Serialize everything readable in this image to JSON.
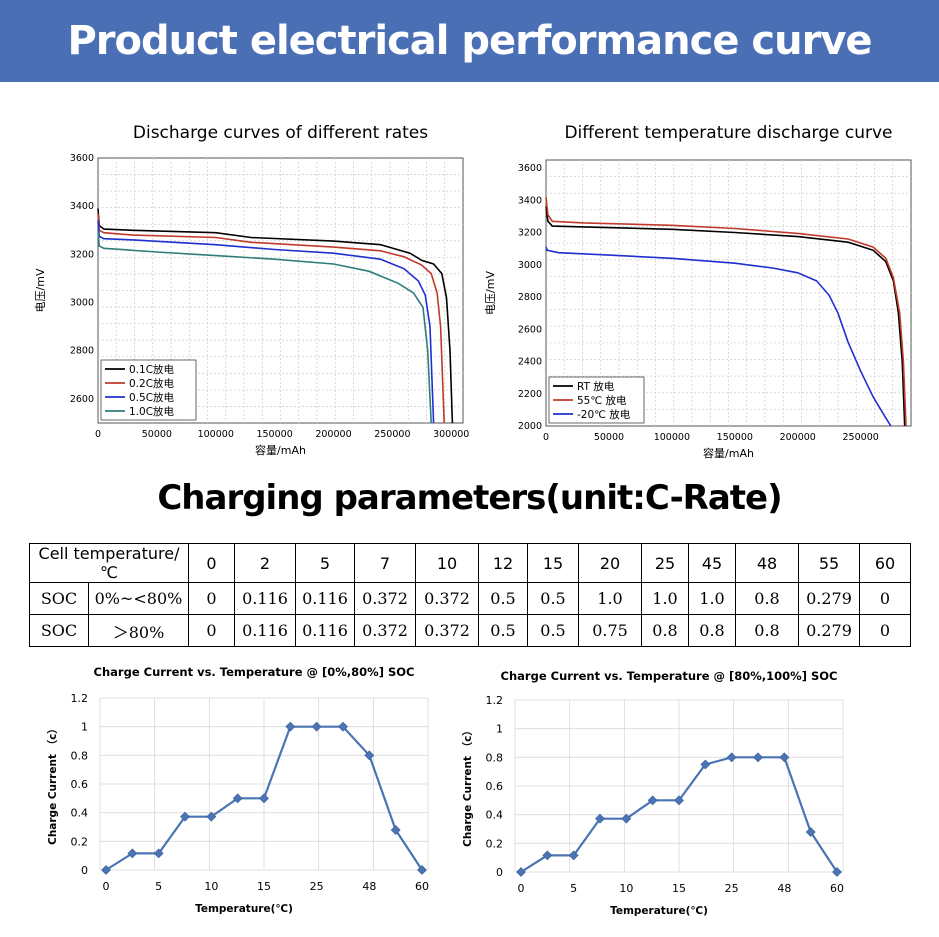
{
  "banner": {
    "title": "Product electrical performance curve"
  },
  "section": {
    "title": "Charging parameters(unit:C-Rate)"
  },
  "colors": {
    "banner": "#4a6fb5",
    "line_blue": "#4a74b4",
    "black": "#000000",
    "red": "#c0392b",
    "blue": "#1f2fd0",
    "teal": "#2e7d7b"
  },
  "table": {
    "header_label": "Cell temperature/℃",
    "temperatures": [
      "0",
      "2",
      "5",
      "7",
      "10",
      "12",
      "15",
      "20",
      "25",
      "45",
      "48",
      "55",
      "60"
    ],
    "rows": [
      {
        "label": "SOC",
        "range": "0%~<80%",
        "values": [
          "0",
          "0.116",
          "0.116",
          "0.372",
          "0.372",
          "0.5",
          "0.5",
          "1.0",
          "1.0",
          "1.0",
          "0.8",
          "0.279",
          "0"
        ]
      },
      {
        "label": "SOC",
        "range": "＞80%",
        "values": [
          "0",
          "0.116",
          "0.116",
          "0.372",
          "0.372",
          "0.5",
          "0.5",
          "0.75",
          "0.8",
          "0.8",
          "0.8",
          "0.279",
          "0"
        ]
      }
    ]
  },
  "chart_data": [
    {
      "type": "line",
      "title": "Discharge curves of different rates",
      "xlabel": "容量/mAh",
      "ylabel": "电压/mV",
      "xlim": [
        0,
        310000
      ],
      "ylim": [
        2500,
        3600
      ],
      "xticks": [
        "0",
        "50000",
        "100000",
        "150000",
        "200000",
        "250000",
        "300000"
      ],
      "yticks": [
        "2600",
        "2800",
        "3000",
        "3200",
        "3400",
        "3600"
      ],
      "grid": true,
      "legend_position": "bottom-left",
      "series": [
        {
          "name": "0.1C放电",
          "color": "#000000",
          "points": [
            [
              0,
              3390
            ],
            [
              1000,
              3320
            ],
            [
              5000,
              3305
            ],
            [
              30000,
              3300
            ],
            [
              100000,
              3290
            ],
            [
              130000,
              3270
            ],
            [
              200000,
              3255
            ],
            [
              240000,
              3240
            ],
            [
              265000,
              3205
            ],
            [
              275000,
              3175
            ],
            [
              285000,
              3160
            ],
            [
              292000,
              3120
            ],
            [
              296000,
              3020
            ],
            [
              299000,
              2800
            ],
            [
              301000,
              2500
            ]
          ]
        },
        {
          "name": "0.2C放电",
          "color": "#c0392b",
          "points": [
            [
              0,
              3370
            ],
            [
              1000,
              3300
            ],
            [
              5000,
              3290
            ],
            [
              30000,
              3280
            ],
            [
              100000,
              3270
            ],
            [
              130000,
              3250
            ],
            [
              200000,
              3230
            ],
            [
              240000,
              3215
            ],
            [
              260000,
              3190
            ],
            [
              275000,
              3155
            ],
            [
              283000,
              3120
            ],
            [
              288000,
              3040
            ],
            [
              291000,
              2900
            ],
            [
              294000,
              2500
            ]
          ]
        },
        {
          "name": "0.5C放电",
          "color": "#1f2fd0",
          "points": [
            [
              0,
              3340
            ],
            [
              1000,
              3275
            ],
            [
              5000,
              3265
            ],
            [
              30000,
              3260
            ],
            [
              100000,
              3240
            ],
            [
              150000,
              3220
            ],
            [
              200000,
              3205
            ],
            [
              240000,
              3180
            ],
            [
              260000,
              3140
            ],
            [
              272000,
              3090
            ],
            [
              278000,
              3030
            ],
            [
              282000,
              2900
            ],
            [
              285000,
              2500
            ]
          ]
        },
        {
          "name": "1.0C放电",
          "color": "#2e7d7b",
          "points": [
            [
              0,
              3300
            ],
            [
              1000,
              3235
            ],
            [
              5000,
              3225
            ],
            [
              50000,
              3210
            ],
            [
              100000,
              3195
            ],
            [
              150000,
              3180
            ],
            [
              200000,
              3160
            ],
            [
              230000,
              3130
            ],
            [
              255000,
              3080
            ],
            [
              268000,
              3040
            ],
            [
              276000,
              2980
            ],
            [
              280000,
              2800
            ],
            [
              283000,
              2500
            ]
          ]
        }
      ]
    },
    {
      "type": "line",
      "title": "Different temperature discharge curve",
      "xlabel": "容量/mAh",
      "ylabel": "电压/mV",
      "xlim": [
        0,
        290000
      ],
      "ylim": [
        2000,
        3650
      ],
      "xticks": [
        "0",
        "50000",
        "100000",
        "150000",
        "200000",
        "250000"
      ],
      "yticks": [
        "2000",
        "2200",
        "2400",
        "2600",
        "2800",
        "3000",
        "3200",
        "3400",
        "3600"
      ],
      "grid": true,
      "legend_position": "bottom-left",
      "series": [
        {
          "name": "RT 放电",
          "color": "#000000",
          "points": [
            [
              0,
              3360
            ],
            [
              1500,
              3270
            ],
            [
              5000,
              3240
            ],
            [
              30000,
              3235
            ],
            [
              100000,
              3220
            ],
            [
              150000,
              3200
            ],
            [
              200000,
              3175
            ],
            [
              240000,
              3140
            ],
            [
              260000,
              3090
            ],
            [
              270000,
              3020
            ],
            [
              276000,
              2900
            ],
            [
              280000,
              2700
            ],
            [
              283000,
              2400
            ],
            [
              285000,
              2000
            ]
          ]
        },
        {
          "name": "55℃ 放电",
          "color": "#c0392b",
          "points": [
            [
              0,
              3420
            ],
            [
              1500,
              3310
            ],
            [
              5000,
              3270
            ],
            [
              30000,
              3260
            ],
            [
              100000,
              3245
            ],
            [
              150000,
              3225
            ],
            [
              200000,
              3195
            ],
            [
              240000,
              3160
            ],
            [
              260000,
              3110
            ],
            [
              270000,
              3040
            ],
            [
              276000,
              2920
            ],
            [
              281000,
              2700
            ],
            [
              284000,
              2400
            ],
            [
              286000,
              2000
            ]
          ]
        },
        {
          "name": "-20℃ 放电",
          "color": "#1f2fd0",
          "points": [
            [
              0,
              3110
            ],
            [
              1000,
              3090
            ],
            [
              10000,
              3075
            ],
            [
              50000,
              3060
            ],
            [
              100000,
              3040
            ],
            [
              150000,
              3010
            ],
            [
              180000,
              2980
            ],
            [
              200000,
              2950
            ],
            [
              215000,
              2900
            ],
            [
              225000,
              2810
            ],
            [
              232000,
              2700
            ],
            [
              240000,
              2520
            ],
            [
              250000,
              2340
            ],
            [
              260000,
              2180
            ],
            [
              270000,
              2050
            ],
            [
              274000,
              2000
            ]
          ]
        }
      ]
    },
    {
      "type": "line",
      "title": "Charge Current vs. Temperature @ [0%,80%] SOC",
      "xlabel": "Temperature(℃)",
      "ylabel": "Charge Current （c）",
      "categories": [
        "0",
        "2",
        "5",
        "7",
        "10",
        "12",
        "15",
        "20",
        "25",
        "45",
        "48",
        "55",
        "60"
      ],
      "tick_labels": [
        "0",
        "",
        "5",
        "",
        "10",
        "",
        "15",
        "",
        "25",
        "",
        "48",
        "",
        "60"
      ],
      "values": [
        0,
        0.116,
        0.116,
        0.372,
        0.372,
        0.5,
        0.5,
        1.0,
        1.0,
        1.0,
        0.8,
        0.279,
        0
      ],
      "ylim": [
        0,
        1.2
      ],
      "yticks": [
        "0",
        "0.2",
        "0.4",
        "0.6",
        "0.8",
        "1",
        "1.2"
      ],
      "grid": true
    },
    {
      "type": "line",
      "title": "Charge Current vs. Temperature @ [80%,100%] SOC",
      "xlabel": "Temperature(℃)",
      "ylabel": "Charge Current （c）",
      "categories": [
        "0",
        "2",
        "5",
        "7",
        "10",
        "12",
        "15",
        "20",
        "25",
        "45",
        "48",
        "55",
        "60"
      ],
      "tick_labels": [
        "0",
        "",
        "5",
        "",
        "10",
        "",
        "15",
        "",
        "25",
        "",
        "48",
        "",
        "60"
      ],
      "values": [
        0,
        0.116,
        0.116,
        0.372,
        0.372,
        0.5,
        0.5,
        0.75,
        0.8,
        0.8,
        0.8,
        0.279,
        0
      ],
      "ylim": [
        0,
        1.2
      ],
      "yticks": [
        "0",
        "0.2",
        "0.4",
        "0.6",
        "0.8",
        "1",
        "1.2"
      ],
      "grid": true
    }
  ]
}
